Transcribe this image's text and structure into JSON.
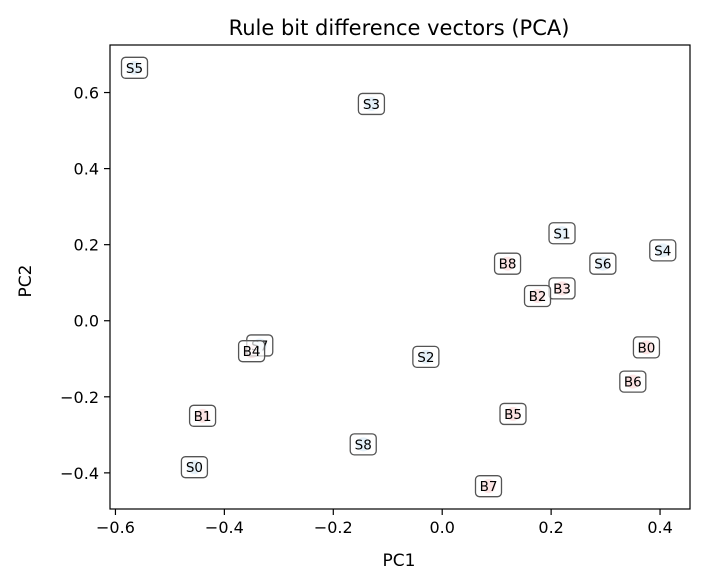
{
  "chart_data": {
    "type": "scatter",
    "title": "Rule bit difference vectors (PCA)",
    "xlabel": "PC1",
    "ylabel": "PC2",
    "xlim": [
      -0.61,
      0.455
    ],
    "ylim": [
      -0.495,
      0.725
    ],
    "xticks": [
      -0.6,
      -0.4,
      -0.2,
      0.0,
      0.2,
      0.4
    ],
    "xtick_labels": [
      "−0.6",
      "−0.4",
      "−0.2",
      "0.0",
      "0.2",
      "0.4"
    ],
    "yticks": [
      -0.4,
      -0.2,
      0.0,
      0.2,
      0.4,
      0.6
    ],
    "ytick_labels": [
      "−0.4",
      "−0.2",
      "0.0",
      "0.2",
      "0.4",
      "0.6"
    ],
    "grid": false,
    "colors": {
      "S": "#a6cbe6",
      "B": "#f4a3a3",
      "label_border": "#555555"
    },
    "points": [
      {
        "label": "S5",
        "group": "S",
        "x": -0.565,
        "y": 0.665
      },
      {
        "label": "S3",
        "group": "S",
        "x": -0.13,
        "y": 0.57
      },
      {
        "label": "S1",
        "group": "S",
        "x": 0.22,
        "y": 0.23
      },
      {
        "label": "S4",
        "group": "S",
        "x": 0.405,
        "y": 0.185
      },
      {
        "label": "S6",
        "group": "S",
        "x": 0.295,
        "y": 0.15
      },
      {
        "label": "S7",
        "group": "S",
        "x": -0.335,
        "y": -0.065
      },
      {
        "label": "S2",
        "group": "S",
        "x": -0.03,
        "y": -0.095
      },
      {
        "label": "S8",
        "group": "S",
        "x": -0.145,
        "y": -0.325
      },
      {
        "label": "S0",
        "group": "S",
        "x": -0.455,
        "y": -0.385
      },
      {
        "label": "B8",
        "group": "B",
        "x": 0.12,
        "y": 0.15
      },
      {
        "label": "B3",
        "group": "B",
        "x": 0.22,
        "y": 0.085
      },
      {
        "label": "B2",
        "group": "B",
        "x": 0.175,
        "y": 0.065
      },
      {
        "label": "B0",
        "group": "B",
        "x": 0.375,
        "y": -0.07
      },
      {
        "label": "B4",
        "group": "B",
        "x": -0.35,
        "y": -0.08
      },
      {
        "label": "B6",
        "group": "B",
        "x": 0.35,
        "y": -0.16
      },
      {
        "label": "B5",
        "group": "B",
        "x": 0.13,
        "y": -0.245
      },
      {
        "label": "B1",
        "group": "B",
        "x": -0.44,
        "y": -0.25
      },
      {
        "label": "B7",
        "group": "B",
        "x": 0.085,
        "y": -0.435
      }
    ]
  }
}
